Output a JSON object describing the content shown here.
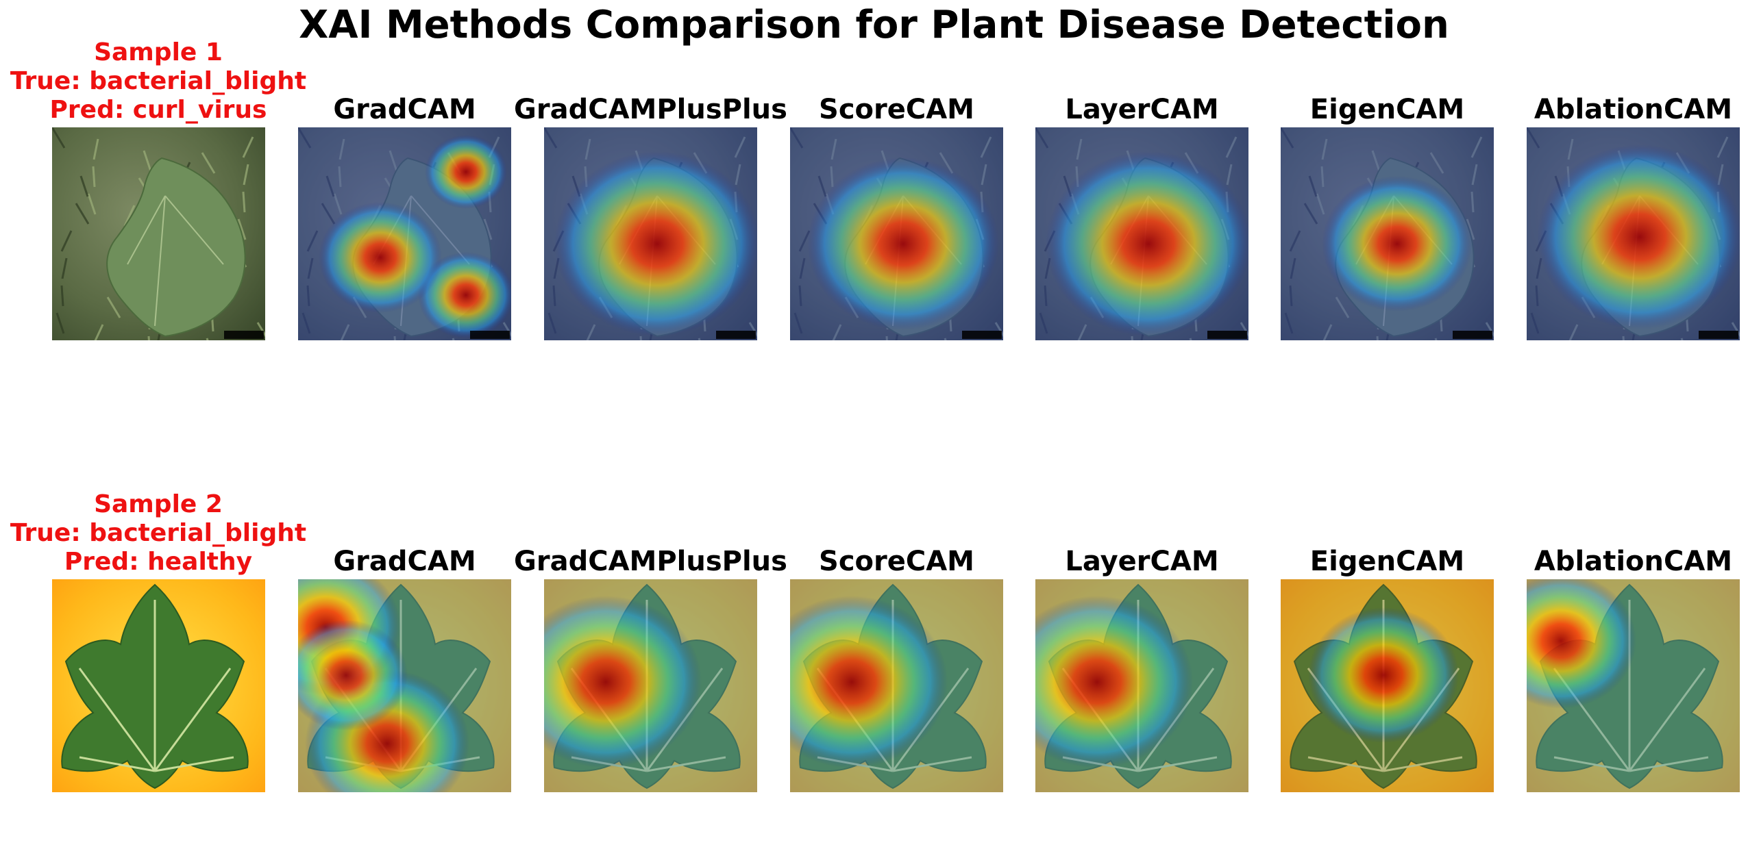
{
  "title": "XAI Methods Comparison for Plant Disease Detection",
  "label_color": "#ee1111",
  "methods": [
    "GradCAM",
    "GradCAMPlusPlus",
    "ScoreCAM",
    "LayerCAM",
    "EigenCAM",
    "AblationCAM"
  ],
  "samples": [
    {
      "sample": "Sample 1",
      "true_label": "True: bacterial_blight",
      "pred_label": "Pred: curl_virus",
      "image_name": "cotton-leaf-on-weeds-image",
      "heatmaps": [
        {
          "method": "GradCAM",
          "overlay": "gradcam-overlay-image"
        },
        {
          "method": "GradCAMPlusPlus",
          "overlay": "gradcamplusplus-overlay-image"
        },
        {
          "method": "ScoreCAM",
          "overlay": "scorecam-overlay-image"
        },
        {
          "method": "LayerCAM",
          "overlay": "layercam-overlay-image"
        },
        {
          "method": "EigenCAM",
          "overlay": "eigencam-overlay-image"
        },
        {
          "method": "AblationCAM",
          "overlay": "ablationcam-overlay-image"
        }
      ]
    },
    {
      "sample": "Sample 2",
      "true_label": "True: bacterial_blight",
      "pred_label": "Pred: healthy",
      "image_name": "cotton-leaf-on-yellow-background-image",
      "heatmaps": [
        {
          "method": "GradCAM",
          "overlay": "gradcam-overlay-image"
        },
        {
          "method": "GradCAMPlusPlus",
          "overlay": "gradcamplusplus-overlay-image"
        },
        {
          "method": "ScoreCAM",
          "overlay": "scorecam-overlay-image"
        },
        {
          "method": "LayerCAM",
          "overlay": "layercam-overlay-image"
        },
        {
          "method": "EigenCAM",
          "overlay": "eigencam-overlay-image"
        },
        {
          "method": "AblationCAM",
          "overlay": "ablationcam-overlay-image"
        }
      ]
    }
  ]
}
